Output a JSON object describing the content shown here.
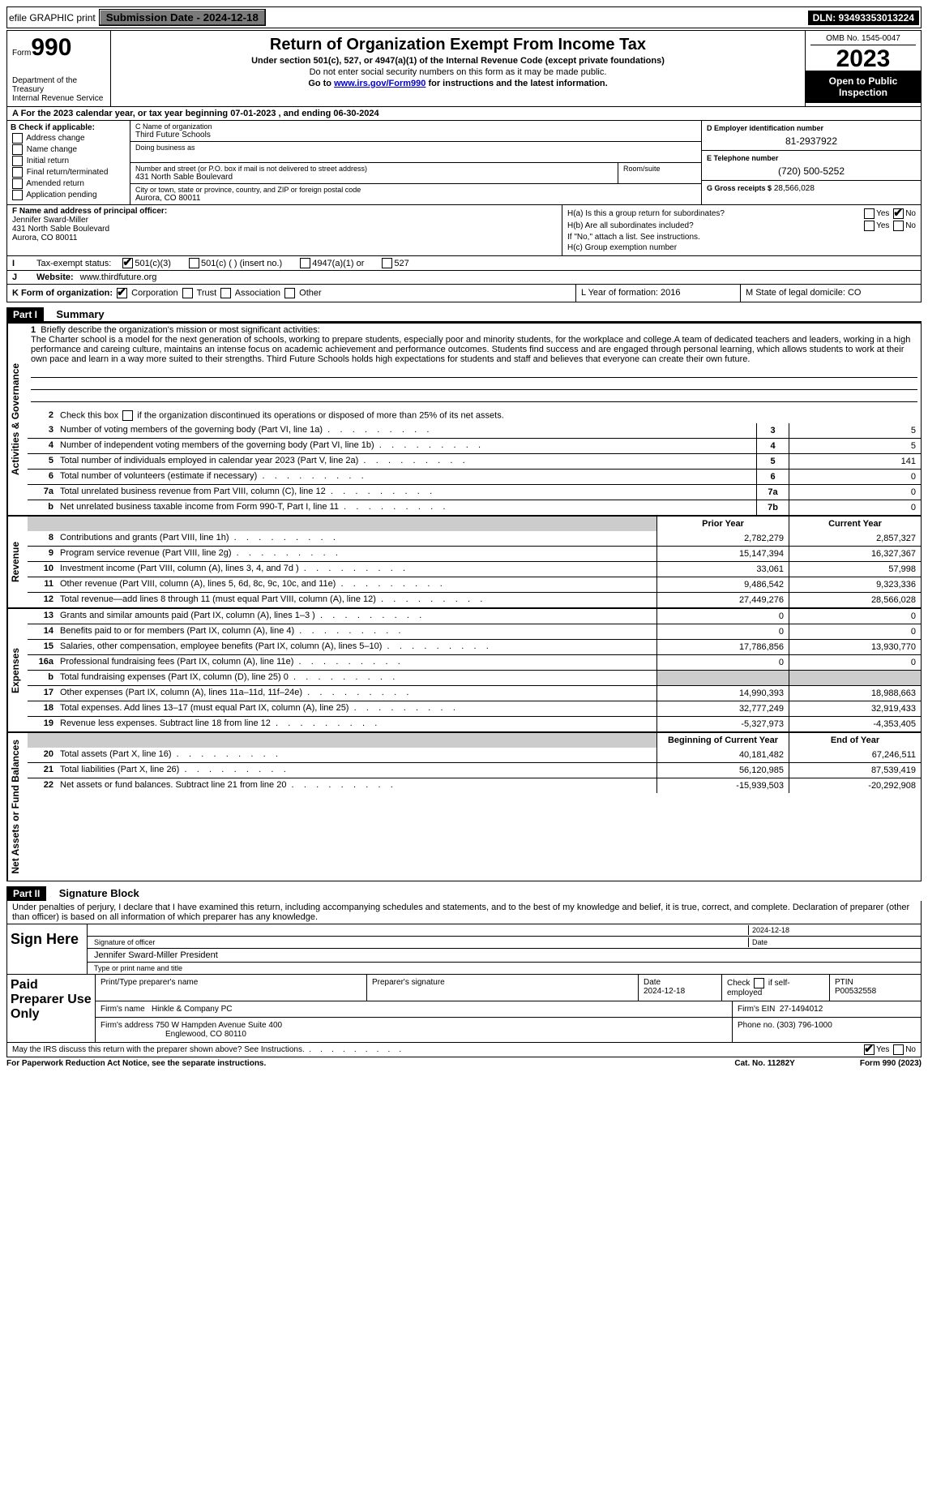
{
  "top": {
    "efile": "efile GRAPHIC print",
    "submission": "Submission Date - 2024-12-18",
    "dln": "DLN: 93493353013224"
  },
  "header": {
    "form_word": "Form",
    "form_num": "990",
    "title": "Return of Organization Exempt From Income Tax",
    "subtitle": "Under section 501(c), 527, or 4947(a)(1) of the Internal Revenue Code (except private foundations)",
    "note": "Do not enter social security numbers on this form as it may be made public.",
    "goto_prefix": "Go to ",
    "goto_link": "www.irs.gov/Form990",
    "goto_suffix": " for instructions and the latest information.",
    "dept": "Department of the Treasury\nInternal Revenue Service",
    "omb": "OMB No. 1545-0047",
    "year": "2023",
    "open": "Open to Public Inspection"
  },
  "period": "A For the 2023 calendar year, or tax year beginning 07-01-2023   , and ending 06-30-2024",
  "sectionB": {
    "title": "B Check if applicable:",
    "items": [
      "Address change",
      "Name change",
      "Initial return",
      "Final return/terminated",
      "Amended return",
      "Application pending"
    ]
  },
  "sectionC": {
    "name_label": "C Name of organization",
    "name": "Third Future Schools",
    "dba_label": "Doing business as",
    "addr_label": "Number and street (or P.O. box if mail is not delivered to street address)",
    "room_label": "Room/suite",
    "addr": "431 North Sable Boulevard",
    "city_label": "City or town, state or province, country, and ZIP or foreign postal code",
    "city": "Aurora, CO  80011"
  },
  "sectionD": {
    "label": "D Employer identification number",
    "val": "81-2937922"
  },
  "sectionE": {
    "label": "E Telephone number",
    "val": "(720) 500-5252"
  },
  "sectionG": {
    "label": "G Gross receipts $",
    "val": "28,566,028"
  },
  "sectionF": {
    "label": "F  Name and address of principal officer:",
    "name": "Jennifer Sward-Miller",
    "addr1": "431 North Sable Boulevard",
    "addr2": "Aurora, CO  80011"
  },
  "sectionH": {
    "a": "H(a)  Is this a group return for subordinates?",
    "b": "H(b)  Are all subordinates included?",
    "b_note": "If \"No,\" attach a list. See instructions.",
    "c": "H(c)  Group exemption number",
    "yes": "Yes",
    "no": "No"
  },
  "sectionI": {
    "label": "I",
    "text": "Tax-exempt status:",
    "opts": [
      "501(c)(3)",
      "501(c) (  ) (insert no.)",
      "4947(a)(1) or",
      "527"
    ]
  },
  "sectionJ": {
    "label": "J",
    "text": "Website:",
    "val": "www.thirdfuture.org"
  },
  "sectionK": {
    "label": "K Form of organization:",
    "opts": [
      "Corporation",
      "Trust",
      "Association",
      "Other"
    ]
  },
  "sectionL": {
    "text": "L Year of formation: 2016"
  },
  "sectionM": {
    "text": "M State of legal domicile: CO"
  },
  "part1": {
    "label": "Part I",
    "title": "Summary",
    "side_labels": [
      "Activities & Governance",
      "Revenue",
      "Expenses",
      "Net Assets or Fund Balances"
    ],
    "line1_label": "1",
    "line1_text": "Briefly describe the organization's mission or most significant activities:",
    "mission": "The Charter school is a model for the next generation of schools, working to prepare students, especially poor and minority students, for the workplace and college.A team of dedicated teachers and leaders, working in a high performance and careing culture, maintains an intense focus on academic achievement and performance outcomes. Students find success and are engaged through personal learning, which allows students to work at their own pace and learn in a way more suited to their strengths. Third Future Schools holds high expectations for students and staff and believes that everyone can create their own future.",
    "line2": "Check this box      if the organization discontinued its operations or disposed of more than 25% of its net assets.",
    "governance_rows": [
      {
        "num": "3",
        "desc": "Number of voting members of the governing body (Part VI, line 1a)",
        "box": "3",
        "val": "5"
      },
      {
        "num": "4",
        "desc": "Number of independent voting members of the governing body (Part VI, line 1b)",
        "box": "4",
        "val": "5"
      },
      {
        "num": "5",
        "desc": "Total number of individuals employed in calendar year 2023 (Part V, line 2a)",
        "box": "5",
        "val": "141"
      },
      {
        "num": "6",
        "desc": "Total number of volunteers (estimate if necessary)",
        "box": "6",
        "val": "0"
      },
      {
        "num": "7a",
        "desc": "Total unrelated business revenue from Part VIII, column (C), line 12",
        "box": "7a",
        "val": "0"
      },
      {
        "num": "b",
        "desc": "Net unrelated business taxable income from Form 990-T, Part I, line 11",
        "box": "7b",
        "val": "0"
      }
    ],
    "year_header": {
      "prior": "Prior Year",
      "current": "Current Year"
    },
    "revenue_rows": [
      {
        "num": "8",
        "desc": "Contributions and grants (Part VIII, line 1h)",
        "prior": "2,782,279",
        "current": "2,857,327"
      },
      {
        "num": "9",
        "desc": "Program service revenue (Part VIII, line 2g)",
        "prior": "15,147,394",
        "current": "16,327,367"
      },
      {
        "num": "10",
        "desc": "Investment income (Part VIII, column (A), lines 3, 4, and 7d )",
        "prior": "33,061",
        "current": "57,998"
      },
      {
        "num": "11",
        "desc": "Other revenue (Part VIII, column (A), lines 5, 6d, 8c, 9c, 10c, and 11e)",
        "prior": "9,486,542",
        "current": "9,323,336"
      },
      {
        "num": "12",
        "desc": "Total revenue—add lines 8 through 11 (must equal Part VIII, column (A), line 12)",
        "prior": "27,449,276",
        "current": "28,566,028"
      }
    ],
    "expense_rows": [
      {
        "num": "13",
        "desc": "Grants and similar amounts paid (Part IX, column (A), lines 1–3 )",
        "prior": "0",
        "current": "0"
      },
      {
        "num": "14",
        "desc": "Benefits paid to or for members (Part IX, column (A), line 4)",
        "prior": "0",
        "current": "0"
      },
      {
        "num": "15",
        "desc": "Salaries, other compensation, employee benefits (Part IX, column (A), lines 5–10)",
        "prior": "17,786,856",
        "current": "13,930,770"
      },
      {
        "num": "16a",
        "desc": "Professional fundraising fees (Part IX, column (A), line 11e)",
        "prior": "0",
        "current": "0"
      },
      {
        "num": "b",
        "desc": "Total fundraising expenses (Part IX, column (D), line 25) 0",
        "prior": "",
        "current": "",
        "shaded": true
      },
      {
        "num": "17",
        "desc": "Other expenses (Part IX, column (A), lines 11a–11d, 11f–24e)",
        "prior": "14,990,393",
        "current": "18,988,663"
      },
      {
        "num": "18",
        "desc": "Total expenses. Add lines 13–17 (must equal Part IX, column (A), line 25)",
        "prior": "32,777,249",
        "current": "32,919,433"
      },
      {
        "num": "19",
        "desc": "Revenue less expenses. Subtract line 18 from line 12",
        "prior": "-5,327,973",
        "current": "-4,353,405"
      }
    ],
    "balance_header": {
      "begin": "Beginning of Current Year",
      "end": "End of Year"
    },
    "balance_rows": [
      {
        "num": "20",
        "desc": "Total assets (Part X, line 16)",
        "prior": "40,181,482",
        "current": "67,246,511"
      },
      {
        "num": "21",
        "desc": "Total liabilities (Part X, line 26)",
        "prior": "56,120,985",
        "current": "87,539,419"
      },
      {
        "num": "22",
        "desc": "Net assets or fund balances. Subtract line 21 from line 20",
        "prior": "-15,939,503",
        "current": "-20,292,908"
      }
    ]
  },
  "part2": {
    "label": "Part II",
    "title": "Signature Block",
    "declaration": "Under penalties of perjury, I declare that I have examined this return, including accompanying schedules and statements, and to the best of my knowledge and belief, it is true, correct, and complete. Declaration of preparer (other than officer) is based on all information of which preparer has any knowledge.",
    "sign_here": "Sign Here",
    "sig_date": "2024-12-18",
    "sig_officer_label": "Signature of officer",
    "date_label": "Date",
    "officer_name": "Jennifer Sward-Miller  President",
    "type_label": "Type or print name and title",
    "paid_prep": "Paid Preparer Use Only",
    "print_label": "Print/Type preparer's name",
    "prep_sig_label": "Preparer's signature",
    "prep_date_label": "Date",
    "prep_date": "2024-12-18",
    "check_self": "Check         if self-employed",
    "ptin_label": "PTIN",
    "ptin": "P00532558",
    "firm_name_label": "Firm's name",
    "firm_name": "Hinkle & Company PC",
    "firm_ein_label": "Firm's EIN",
    "firm_ein": "27-1494012",
    "firm_addr_label": "Firm's address",
    "firm_addr1": "750 W Hampden Avenue Suite 400",
    "firm_addr2": "Englewood, CO  80110",
    "phone_label": "Phone no.",
    "phone": "(303) 796-1000",
    "discuss": "May the IRS discuss this return with the preparer shown above? See Instructions.",
    "yes": "Yes",
    "no": "No"
  },
  "footer": {
    "paperwork": "For Paperwork Reduction Act Notice, see the separate instructions.",
    "cat": "Cat. No. 11282Y",
    "form": "Form 990 (2023)"
  }
}
